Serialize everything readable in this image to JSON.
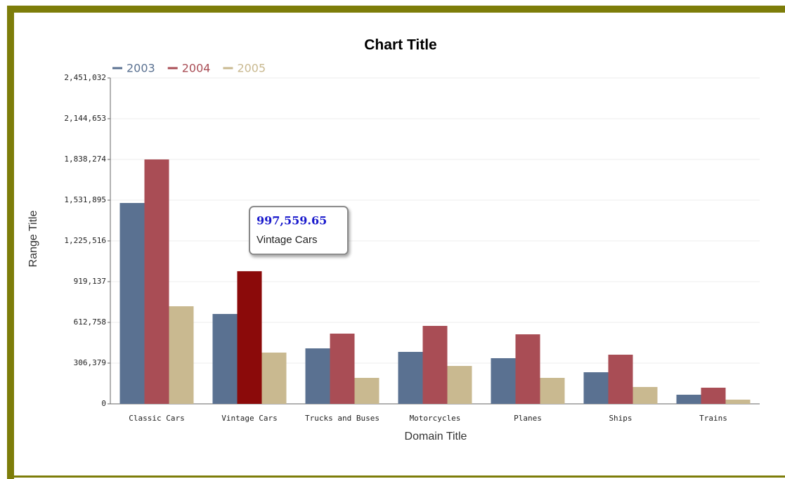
{
  "chart_data": {
    "type": "bar",
    "title": "Chart Title",
    "x_label": "Domain Title",
    "y_label": "Range Title",
    "categories": [
      "Classic Cars",
      "Vintage Cars",
      "Trucks and Buses",
      "Motorcycles",
      "Planes",
      "Ships",
      "Trains"
    ],
    "series": [
      {
        "name": "2003",
        "color": "#5a7191",
        "values": [
          1510800,
          676000,
          417300,
          390900,
          343400,
          237700,
          68700
        ]
      },
      {
        "name": "2004",
        "color": "#a94d55",
        "values": [
          1838274,
          997559.65,
          528200,
          586400,
          523000,
          369800,
          121500
        ],
        "value_labels": [
          null,
          "997,559.65",
          null,
          null,
          null,
          null,
          null
        ]
      },
      {
        "name": "2005",
        "color": "#c9b990",
        "values": [
          734000,
          385600,
          195400,
          285200,
          195400,
          126800,
          31700
        ]
      }
    ],
    "highlight_color": "#8b0a0a",
    "ylim": [
      0,
      2451032
    ],
    "yticks": [
      0,
      {
        "value": 306379,
        "label": "306,379"
      },
      {
        "value": 612758,
        "label": "612,758"
      },
      {
        "value": 919137,
        "label": "919,137"
      },
      {
        "value": 1225516,
        "label": "1,225,516"
      },
      {
        "value": 1531895,
        "label": "1,531,895"
      },
      {
        "value": 1838274,
        "label": "1,838,274"
      },
      {
        "value": 2144653,
        "label": "2,144,653"
      },
      {
        "value": 2451032,
        "label": "2,451,032"
      }
    ],
    "grid": true,
    "legend": "top-left"
  }
}
